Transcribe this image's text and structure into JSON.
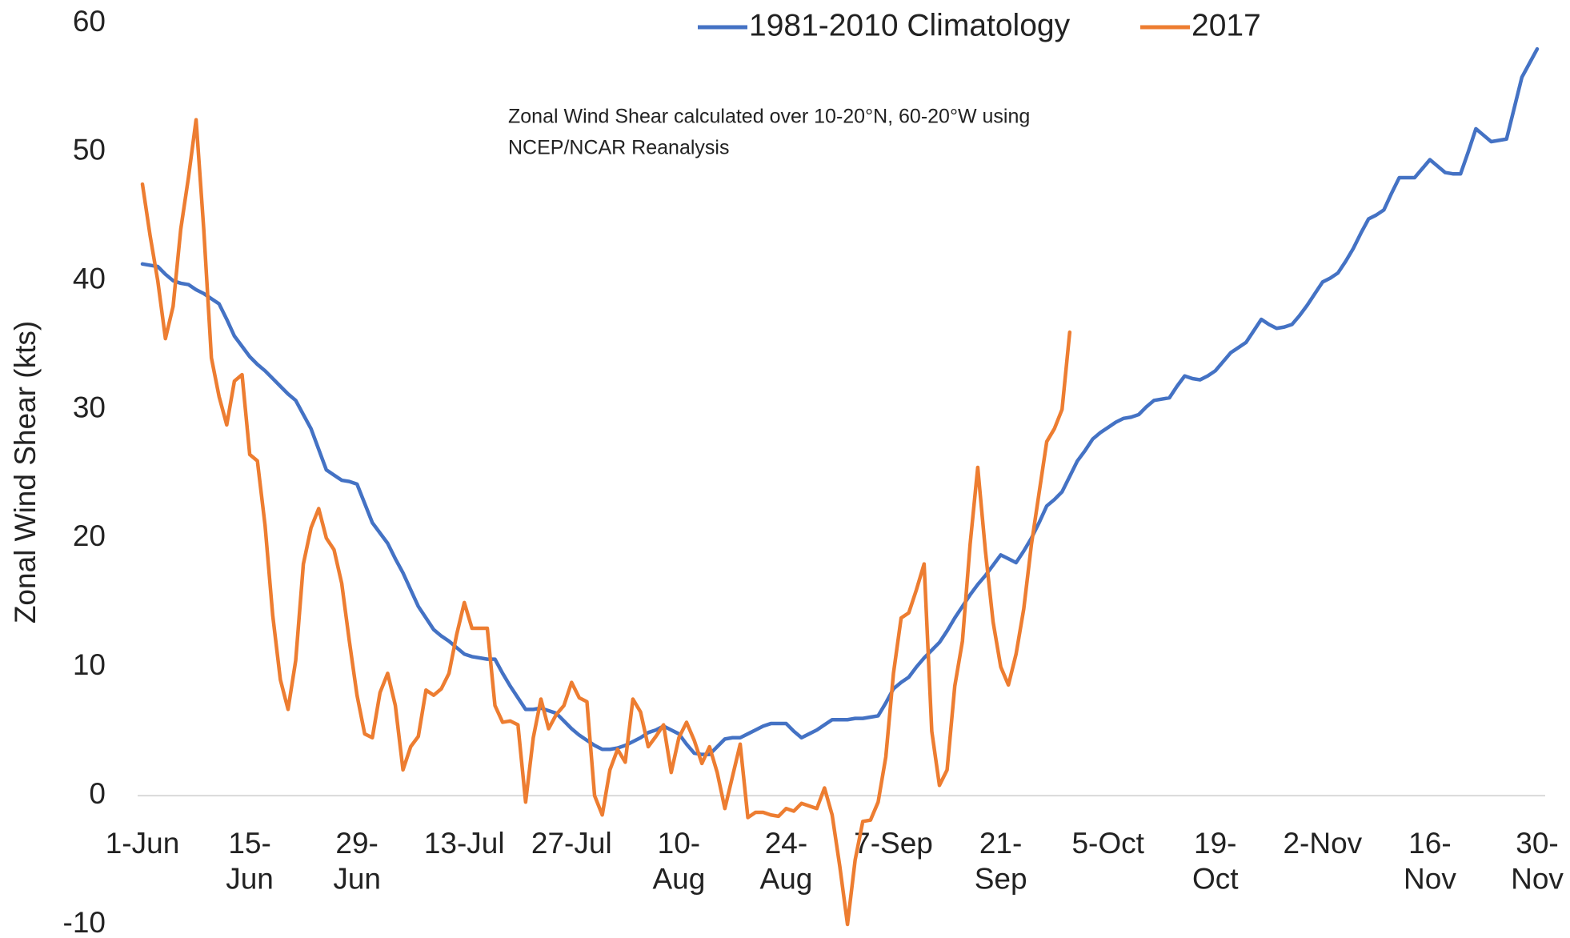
{
  "chart_data": {
    "type": "line",
    "y_axis_label": "Zonal Wind Shear (kts)",
    "annotation": [
      "Zonal Wind Shear calculated over 10-20°N, 60-20°W  using",
      "NCEP/NCAR Reanalysis"
    ],
    "ylim": [
      -10,
      60
    ],
    "yticks": [
      -10,
      0,
      10,
      20,
      30,
      40,
      50,
      60
    ],
    "grid": false,
    "legend": "top",
    "categories": [
      "1-Jun",
      null,
      null,
      null,
      null,
      null,
      null,
      null,
      null,
      null,
      null,
      null,
      null,
      null,
      "15-\nJun",
      null,
      null,
      null,
      null,
      null,
      null,
      null,
      null,
      null,
      null,
      null,
      null,
      null,
      "29-\nJun",
      null,
      null,
      null,
      null,
      null,
      null,
      null,
      null,
      null,
      null,
      null,
      null,
      null,
      "13-Jul",
      null,
      null,
      null,
      null,
      null,
      null,
      null,
      null,
      null,
      null,
      null,
      null,
      null,
      "27-Jul",
      null,
      null,
      null,
      null,
      null,
      null,
      null,
      null,
      null,
      null,
      null,
      null,
      null,
      "10-\nAug",
      null,
      null,
      null,
      null,
      null,
      null,
      null,
      null,
      null,
      null,
      null,
      null,
      null,
      "24-\nAug",
      null,
      null,
      null,
      null,
      null,
      null,
      null,
      null,
      null,
      null,
      null,
      null,
      null,
      "7-Sep",
      null,
      null,
      null,
      null,
      null,
      null,
      null,
      null,
      null,
      null,
      null,
      null,
      null,
      "21-\nSep",
      null,
      null,
      null,
      null,
      null,
      null,
      null,
      null,
      null,
      null,
      null,
      null,
      null,
      "5-Oct",
      null,
      null,
      null,
      null,
      null,
      null,
      null,
      null,
      null,
      null,
      null,
      null,
      null,
      "19-\nOct",
      null,
      null,
      null,
      null,
      null,
      null,
      null,
      null,
      null,
      null,
      null,
      null,
      null,
      "2-Nov",
      null,
      null,
      null,
      null,
      null,
      null,
      null,
      null,
      null,
      null,
      null,
      null,
      null,
      "16-\nNov",
      null,
      null,
      null,
      null,
      null,
      null,
      null,
      null,
      null,
      null,
      null,
      null,
      null,
      "30-\nNov"
    ],
    "series": [
      {
        "name": "1981-2010 Climatology",
        "color": "#4472c4",
        "values": [
          41.3,
          41.2,
          41.1,
          40.5,
          40,
          39.8,
          39.7,
          39.3,
          39,
          38.6,
          38.2,
          37,
          35.7,
          34.9,
          34.1,
          33.5,
          33,
          32.4,
          31.8,
          31.2,
          30.7,
          29.6,
          28.5,
          26.9,
          25.3,
          24.9,
          24.5,
          24.4,
          24.2,
          22.7,
          21.2,
          20.4,
          19.6,
          18.4,
          17.3,
          16,
          14.7,
          13.8,
          12.9,
          12.4,
          12,
          11.5,
          11,
          10.8,
          10.7,
          10.6,
          10.6,
          9.5,
          8.5,
          7.6,
          6.7,
          6.7,
          6.8,
          6.6,
          6.4,
          5.8,
          5.2,
          4.7,
          4.3,
          3.9,
          3.6,
          3.6,
          3.7,
          3.9,
          4.2,
          4.5,
          4.9,
          5.1,
          5.4,
          5.1,
          4.8,
          4,
          3.3,
          3.2,
          3.2,
          3.8,
          4.4,
          4.5,
          4.5,
          4.8,
          5.1,
          5.4,
          5.6,
          5.6,
          5.6,
          5,
          4.5,
          4.8,
          5.1,
          5.5,
          5.9,
          5.9,
          5.9,
          6,
          6,
          6.1,
          6.2,
          7.2,
          8.3,
          8.8,
          9.2,
          10,
          10.7,
          11.3,
          11.9,
          12.8,
          13.8,
          14.7,
          15.6,
          16.4,
          17.1,
          17.9,
          18.7,
          18.4,
          18.1,
          19,
          20,
          21.2,
          22.5,
          23,
          23.6,
          24.8,
          26,
          26.8,
          27.7,
          28.2,
          28.6,
          29,
          29.3,
          29.4,
          29.6,
          30.2,
          30.7,
          30.8,
          30.9,
          31.8,
          32.6,
          32.4,
          32.3,
          32.6,
          33,
          33.7,
          34.4,
          34.8,
          35.2,
          36.1,
          37,
          36.6,
          36.3,
          36.4,
          36.6,
          37.3,
          38.1,
          39,
          39.9,
          40.2,
          40.6,
          41.5,
          42.5,
          43.7,
          44.8,
          45.1,
          45.5,
          46.8,
          48,
          48,
          48,
          48.7,
          49.4,
          48.9,
          48.4,
          48.3,
          48.3,
          50,
          51.8,
          51.3,
          50.8,
          50.9,
          51,
          53.4,
          55.8,
          56.9,
          58
        ]
      },
      {
        "name": "2017",
        "color": "#ed7d31",
        "values": [
          47.5,
          43.5,
          40,
          35.5,
          38,
          44,
          48,
          52.5,
          44,
          34,
          31,
          28.8,
          32.2,
          32.7,
          26.5,
          26,
          21,
          14,
          9,
          6.7,
          10.5,
          18,
          20.8,
          22.3,
          20,
          19.1,
          16.5,
          12,
          7.8,
          4.8,
          4.5,
          8,
          9.5,
          7,
          2,
          3.8,
          4.6,
          8.2,
          7.8,
          8.3,
          9.5,
          12.5,
          15,
          13,
          13,
          13,
          7,
          5.7,
          5.8,
          5.5,
          -0.5,
          4.5,
          7.5,
          5.2,
          6.3,
          7,
          8.8,
          7.6,
          7.3,
          0,
          -1.5,
          2,
          3.6,
          2.6,
          7.5,
          6.5,
          3.8,
          4.6,
          5.5,
          1.8,
          4.5,
          5.7,
          4.3,
          2.5,
          3.8,
          1.8,
          -1,
          1.5,
          4,
          -1.7,
          -1.3,
          -1.3,
          -1.5,
          -1.6,
          -1,
          -1.2,
          -0.6,
          -0.8,
          -1,
          0.6,
          -1.5,
          -5.5,
          -10,
          -5,
          -2,
          -1.9,
          -0.5,
          3,
          9.5,
          13.8,
          14.2,
          16,
          18,
          5,
          0.8,
          2,
          8.5,
          12,
          19.5,
          25.5,
          19,
          13.5,
          10,
          8.6,
          11,
          14.5,
          19.5,
          23.5,
          27.5,
          28.5,
          30,
          36,
          null,
          null,
          null,
          null,
          null,
          null,
          null,
          null,
          null,
          null,
          null,
          null,
          null,
          null,
          null,
          null,
          null,
          null,
          null,
          null,
          null,
          null,
          null,
          null,
          null,
          null,
          null,
          null,
          null,
          null,
          null,
          null,
          null,
          null,
          null,
          null,
          null,
          null,
          null,
          null,
          null,
          null,
          null,
          null,
          null,
          null,
          null,
          null,
          null,
          null,
          null,
          null,
          null,
          null,
          null,
          null,
          null,
          null,
          null,
          null,
          null
        ]
      }
    ]
  }
}
